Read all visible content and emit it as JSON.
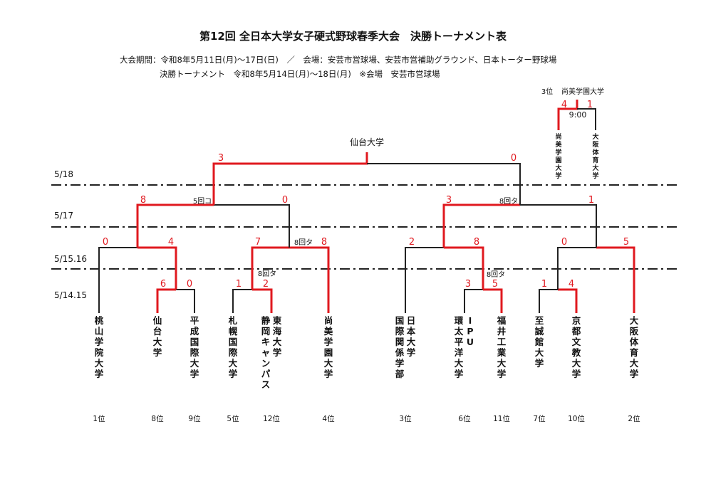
{
  "header": {
    "title": "第12回 全日本大学女子硬式野球春季大会　決勝トーナメント表",
    "line1": "大会期間：令和8年5月11日(月)～17日(日)　／　会場：安芸市営球場、安芸市営補助グラウンド、日本トーター野球場",
    "line2": "決勝トーナメント　令和8年5月14日(月)～18日(月)　※会場　安芸市営球場"
  },
  "dates": [
    "5/18",
    "5/17",
    "5/15.16",
    "5/14.15"
  ],
  "champion": "仙台大学",
  "teams": [
    {
      "name": "桃山学院大学",
      "rank": "1位"
    },
    {
      "name": "仙台大学",
      "rank": "8位"
    },
    {
      "name": "平成国際大学",
      "rank": "9位"
    },
    {
      "name": "札幌国際大学",
      "rank": "5位"
    },
    {
      "name": "東海大学静岡キャンパス",
      "rank": "12位"
    },
    {
      "name": "尚美学園大学",
      "rank": "4位"
    },
    {
      "name": "日本大学国際関係学部",
      "rank": "3位"
    },
    {
      "name": "IPU環太平洋大学",
      "rank": "6位"
    },
    {
      "name": "福井工業大学",
      "rank": "11位"
    },
    {
      "name": "至誠館大学",
      "rank": "7位"
    },
    {
      "name": "京都文教大学",
      "rank": "10位"
    },
    {
      "name": "大阪体育大学",
      "rank": "2位"
    }
  ],
  "scores": {
    "final_left": "3",
    "final_right": "0",
    "sf1_left": "8",
    "sf1_right": "0",
    "sf2_left": "3",
    "sf2_right": "1",
    "qf1_left": "0",
    "qf1_right": "4",
    "qf2_left": "7",
    "qf2_right": "8",
    "qf3_left": "2",
    "qf3_right": "8",
    "qf4_left": "0",
    "qf4_right": "5",
    "r1a_left": "6",
    "r1a_right": "0",
    "r1b_left": "1",
    "r1b_right": "2",
    "r1c_left": "3",
    "r1c_right": "5",
    "r1d_left": "1",
    "r1d_right": "4"
  },
  "notes": {
    "sf1": "5回コ",
    "sf2": "8回タ",
    "qf2": "8回タ",
    "r1b": "8回タ",
    "r1c": "8回タ"
  },
  "third_place": {
    "label": "3位",
    "winner": "尚美学園大学",
    "time": "9:00",
    "left_score": "4",
    "right_score": "1",
    "left_team": "尚美学園大学",
    "right_team": "大阪体育大学"
  },
  "colors": {
    "win_line": "#e0191f",
    "lose_line": "#222222",
    "score": "#e0191f"
  }
}
